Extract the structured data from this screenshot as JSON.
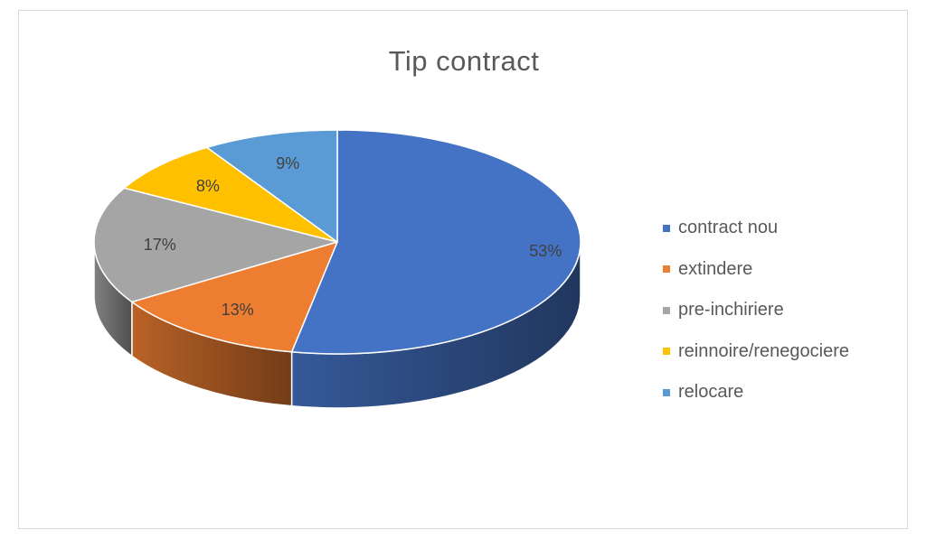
{
  "chart_data": {
    "type": "pie",
    "title": "Tip contract",
    "categories": [
      "contract nou",
      "extindere",
      "pre-inchiriere",
      "reinnoire/renegociere",
      "relocare"
    ],
    "values": [
      53,
      13,
      17,
      8,
      9
    ],
    "labels": [
      "53%",
      "13%",
      "17%",
      "8%",
      "9%"
    ],
    "colors": [
      "#4472C4",
      "#ED7D31",
      "#A5A5A5",
      "#FFC000",
      "#5B9BD5"
    ],
    "style": "3d",
    "legend_position": "right"
  }
}
